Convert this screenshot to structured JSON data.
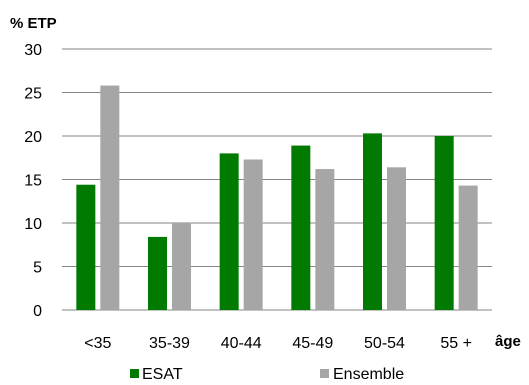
{
  "chart_data": {
    "type": "bar",
    "title": "",
    "ylabel": "% ETP",
    "xlabel": "âge",
    "categories": [
      "<35",
      "35-39",
      "40-44",
      "45-49",
      "50-54",
      "55 +"
    ],
    "series": [
      {
        "name": "ESAT",
        "color": "#007a00",
        "values": [
          14.4,
          8.4,
          18.0,
          18.9,
          20.3,
          20.0
        ]
      },
      {
        "name": "Ensemble",
        "color": "#a6a6a6",
        "values": [
          25.8,
          10.0,
          17.3,
          16.2,
          16.4,
          14.3
        ]
      }
    ],
    "ylim": [
      0,
      30
    ],
    "yticks": [
      0,
      5,
      10,
      15,
      20,
      25,
      30
    ],
    "grid": true,
    "legend": "bottom"
  }
}
